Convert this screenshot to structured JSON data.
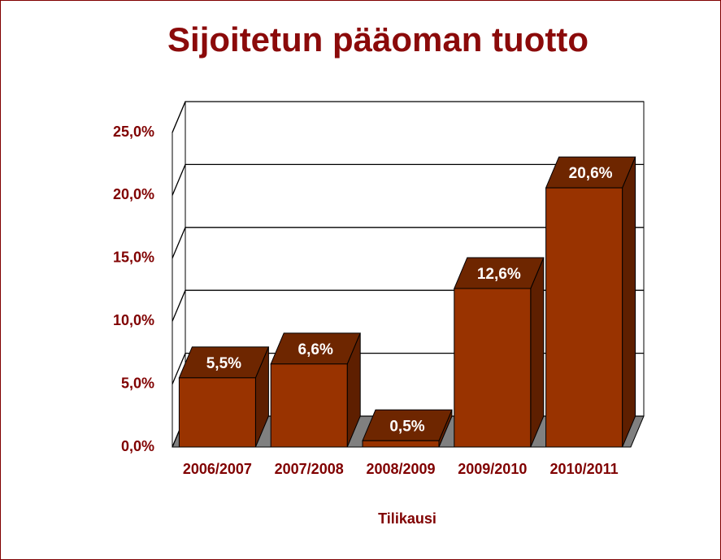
{
  "chart_data": {
    "type": "bar3d",
    "title": "Sijoitetun pääoman tuotto",
    "x_label": "Tilikausi",
    "categories": [
      "2006/2007",
      "2007/2008",
      "2008/2009",
      "2009/2010",
      "2010/2011"
    ],
    "values": [
      5.5,
      6.6,
      0.5,
      12.6,
      20.6
    ],
    "value_labels": [
      "5,5%",
      "6,6%",
      "0,5%",
      "12,6%",
      "20,6%"
    ],
    "color": "#993300",
    "ylim": [
      0,
      25
    ],
    "yticks": [
      {
        "value": 0,
        "label": "0,0%"
      },
      {
        "value": 5,
        "label": "5,0%"
      },
      {
        "value": 10,
        "label": "10,0%"
      },
      {
        "value": 15,
        "label": "15,0%"
      },
      {
        "value": 20,
        "label": "20,0%"
      },
      {
        "value": 25,
        "label": "25,0%"
      }
    ],
    "grid": true
  }
}
